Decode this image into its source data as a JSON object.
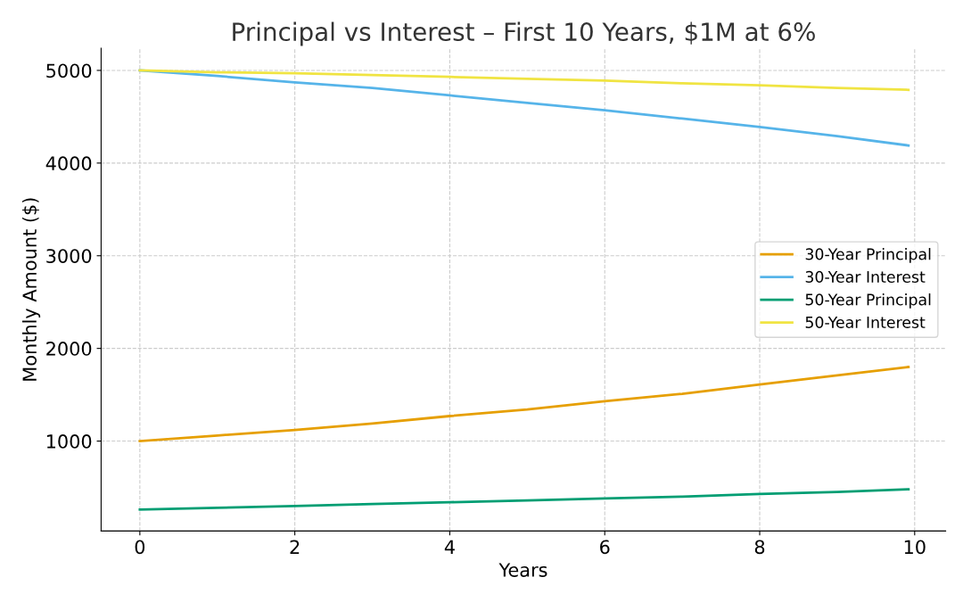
{
  "chart_data": {
    "type": "line",
    "title": "Principal vs Interest – First 10 Years, $1M at 6%",
    "xlabel": "Years",
    "ylabel": "Monthly Amount ($)",
    "x": [
      0,
      1,
      2,
      3,
      4,
      5,
      6,
      7,
      8,
      9,
      9.92
    ],
    "series": [
      {
        "name": "30-Year Principal",
        "color": "#e69f00",
        "values": [
          1000,
          1060,
          1120,
          1190,
          1270,
          1340,
          1430,
          1510,
          1610,
          1710,
          1800
        ]
      },
      {
        "name": "30-Year Interest",
        "color": "#56b4e9",
        "values": [
          5000,
          4940,
          4870,
          4810,
          4730,
          4650,
          4570,
          4480,
          4390,
          4290,
          4190
        ]
      },
      {
        "name": "50-Year Principal",
        "color": "#009e73",
        "values": [
          260,
          280,
          300,
          320,
          340,
          360,
          380,
          400,
          430,
          450,
          480
        ]
      },
      {
        "name": "50-Year Interest",
        "color": "#f0e442",
        "values": [
          5000,
          4980,
          4970,
          4950,
          4930,
          4910,
          4890,
          4860,
          4840,
          4810,
          4790
        ]
      }
    ],
    "xlim": [
      -0.5,
      10.4
    ],
    "ylim": [
      30,
      5240
    ],
    "xticks": [
      0,
      2,
      4,
      6,
      8,
      10
    ],
    "yticks": [
      1000,
      2000,
      3000,
      4000,
      5000
    ],
    "grid": true,
    "legend": "right",
    "marker": "none",
    "line_style": "solid"
  }
}
